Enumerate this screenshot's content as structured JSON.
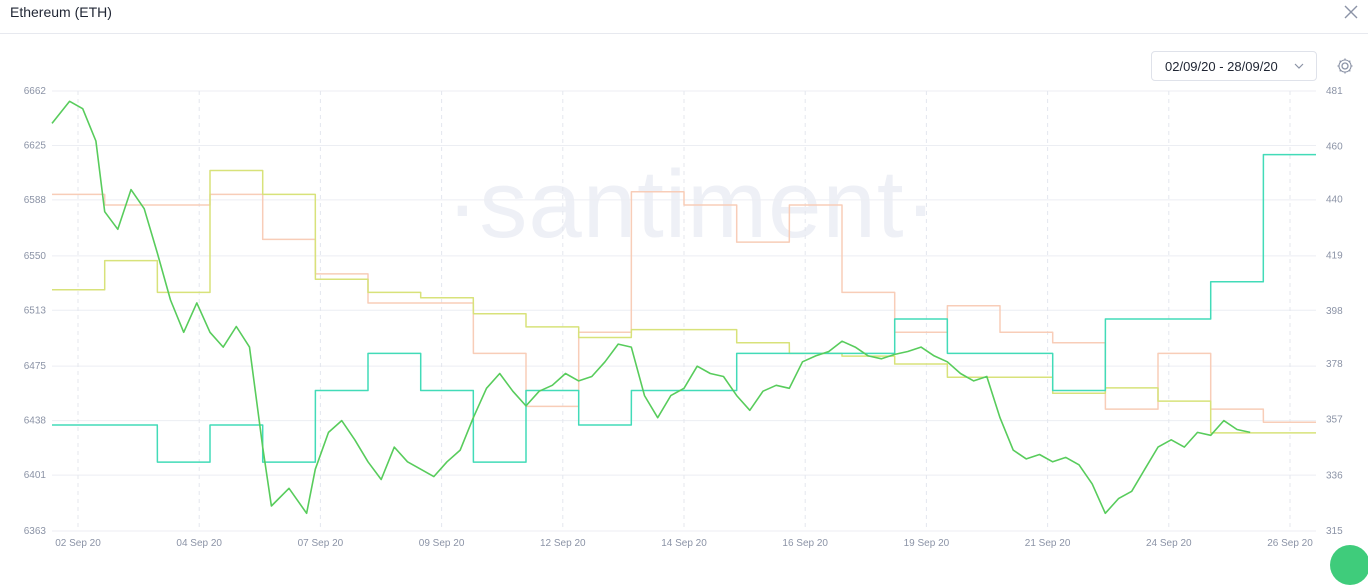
{
  "header": {
    "title": "Ethereum (ETH)",
    "close_icon": "close-icon"
  },
  "controls": {
    "date_range": "02/09/20 - 28/09/20",
    "chevron_icon": "chevron-down-icon",
    "settings_icon": "gear-icon"
  },
  "watermark": "·santiment·",
  "chart_data": {
    "type": "line",
    "title": "",
    "xlabel": "",
    "ylabel": "",
    "grid": true,
    "x_ticks": [
      "02 Sep 20",
      "04 Sep 20",
      "07 Sep 20",
      "09 Sep 20",
      "12 Sep 20",
      "14 Sep 20",
      "16 Sep 20",
      "19 Sep 20",
      "21 Sep 20",
      "24 Sep 20",
      "26 Sep 20"
    ],
    "x_range": [
      "2020-09-02",
      "2020-09-26"
    ],
    "left_axis": {
      "ticks": [
        6662,
        6625,
        6588,
        6550,
        6513,
        6475,
        6438,
        6401,
        6363
      ],
      "ylim": [
        6363,
        6662
      ]
    },
    "right_axis": {
      "ticks": [
        481,
        460,
        440,
        419,
        398,
        378,
        357,
        336,
        315
      ],
      "ylim": [
        315,
        481
      ]
    },
    "colors": {
      "green": "#58cc5c",
      "teal": "#42dbb8",
      "yellow": "#d8e27a",
      "peach": "#f8cdb8"
    },
    "series": [
      {
        "axis": "left",
        "color": "green",
        "shape": "noisy",
        "points": [
          [
            "2020-09-02",
            6640
          ],
          [
            "2020-09-02T08:00",
            6655
          ],
          [
            "2020-09-02T14:00",
            6650
          ],
          [
            "2020-09-02T20:00",
            6628
          ],
          [
            "2020-09-03",
            6580
          ],
          [
            "2020-09-03T06:00",
            6568
          ],
          [
            "2020-09-03T12:00",
            6595
          ],
          [
            "2020-09-03T18:00",
            6582
          ],
          [
            "2020-09-04",
            6552
          ],
          [
            "2020-09-04T06:00",
            6520
          ],
          [
            "2020-09-04T12:00",
            6498
          ],
          [
            "2020-09-04T18:00",
            6518
          ],
          [
            "2020-09-05",
            6498
          ],
          [
            "2020-09-05T06:00",
            6488
          ],
          [
            "2020-09-05T12:00",
            6502
          ],
          [
            "2020-09-05T18:00",
            6488
          ],
          [
            "2020-09-06",
            6420
          ],
          [
            "2020-09-06T04:00",
            6380
          ],
          [
            "2020-09-06T12:00",
            6392
          ],
          [
            "2020-09-06T20:00",
            6375
          ],
          [
            "2020-09-07",
            6405
          ],
          [
            "2020-09-07T06:00",
            6430
          ],
          [
            "2020-09-07T12:00",
            6438
          ],
          [
            "2020-09-07T18:00",
            6425
          ],
          [
            "2020-09-08",
            6410
          ],
          [
            "2020-09-08T06:00",
            6398
          ],
          [
            "2020-09-08T12:00",
            6420
          ],
          [
            "2020-09-08T18:00",
            6410
          ],
          [
            "2020-09-09",
            6405
          ],
          [
            "2020-09-09T06:00",
            6400
          ],
          [
            "2020-09-09T12:00",
            6410
          ],
          [
            "2020-09-09T18:00",
            6418
          ],
          [
            "2020-09-10",
            6440
          ],
          [
            "2020-09-10T06:00",
            6460
          ],
          [
            "2020-09-10T12:00",
            6470
          ],
          [
            "2020-09-10T18:00",
            6458
          ],
          [
            "2020-09-11",
            6448
          ],
          [
            "2020-09-11T06:00",
            6458
          ],
          [
            "2020-09-11T12:00",
            6462
          ],
          [
            "2020-09-11T18:00",
            6470
          ],
          [
            "2020-09-12",
            6465
          ],
          [
            "2020-09-12T06:00",
            6468
          ],
          [
            "2020-09-12T12:00",
            6478
          ],
          [
            "2020-09-12T18:00",
            6490
          ],
          [
            "2020-09-13",
            6488
          ],
          [
            "2020-09-13T06:00",
            6455
          ],
          [
            "2020-09-13T12:00",
            6440
          ],
          [
            "2020-09-13T18:00",
            6455
          ],
          [
            "2020-09-14",
            6460
          ],
          [
            "2020-09-14T06:00",
            6475
          ],
          [
            "2020-09-14T12:00",
            6470
          ],
          [
            "2020-09-14T18:00",
            6468
          ],
          [
            "2020-09-15",
            6455
          ],
          [
            "2020-09-15T06:00",
            6445
          ],
          [
            "2020-09-15T12:00",
            6458
          ],
          [
            "2020-09-15T18:00",
            6462
          ],
          [
            "2020-09-16",
            6460
          ],
          [
            "2020-09-16T06:00",
            6478
          ],
          [
            "2020-09-16T12:00",
            6482
          ],
          [
            "2020-09-16T18:00",
            6485
          ],
          [
            "2020-09-17",
            6492
          ],
          [
            "2020-09-17T06:00",
            6488
          ],
          [
            "2020-09-17T12:00",
            6482
          ],
          [
            "2020-09-17T18:00",
            6480
          ],
          [
            "2020-09-18",
            6483
          ],
          [
            "2020-09-18T06:00",
            6485
          ],
          [
            "2020-09-18T12:00",
            6488
          ],
          [
            "2020-09-18T18:00",
            6482
          ],
          [
            "2020-09-19",
            6478
          ],
          [
            "2020-09-19T06:00",
            6470
          ],
          [
            "2020-09-19T12:00",
            6465
          ],
          [
            "2020-09-19T18:00",
            6468
          ],
          [
            "2020-09-20",
            6440
          ],
          [
            "2020-09-20T06:00",
            6418
          ],
          [
            "2020-09-20T12:00",
            6412
          ],
          [
            "2020-09-20T18:00",
            6415
          ],
          [
            "2020-09-21",
            6410
          ],
          [
            "2020-09-21T06:00",
            6413
          ],
          [
            "2020-09-21T12:00",
            6408
          ],
          [
            "2020-09-21T18:00",
            6395
          ],
          [
            "2020-09-22",
            6375
          ],
          [
            "2020-09-22T06:00",
            6385
          ],
          [
            "2020-09-22T12:00",
            6390
          ],
          [
            "2020-09-22T18:00",
            6405
          ],
          [
            "2020-09-23",
            6420
          ],
          [
            "2020-09-23T06:00",
            6425
          ],
          [
            "2020-09-23T12:00",
            6420
          ],
          [
            "2020-09-23T18:00",
            6430
          ],
          [
            "2020-09-24",
            6428
          ],
          [
            "2020-09-24T06:00",
            6438
          ],
          [
            "2020-09-24T12:00",
            6432
          ],
          [
            "2020-09-24T18:00",
            6430
          ]
        ]
      },
      {
        "axis": "right",
        "color": "teal",
        "shape": "step",
        "points": [
          [
            "2020-09-02",
            355
          ],
          [
            "2020-09-04",
            355
          ],
          [
            "2020-09-04T00:01",
            341
          ],
          [
            "2020-09-05",
            341
          ],
          [
            "2020-09-05T00:01",
            355
          ],
          [
            "2020-09-06",
            355
          ],
          [
            "2020-09-06T00:01",
            341
          ],
          [
            "2020-09-07",
            341
          ],
          [
            "2020-09-07T00:01",
            368
          ],
          [
            "2020-09-08",
            368
          ],
          [
            "2020-09-08T00:01",
            382
          ],
          [
            "2020-09-09",
            382
          ],
          [
            "2020-09-09T00:01",
            368
          ],
          [
            "2020-09-10",
            368
          ],
          [
            "2020-09-10T00:01",
            341
          ],
          [
            "2020-09-11",
            341
          ],
          [
            "2020-09-11T00:01",
            368
          ],
          [
            "2020-09-12",
            368
          ],
          [
            "2020-09-12T00:01",
            355
          ],
          [
            "2020-09-13",
            355
          ],
          [
            "2020-09-13T00:01",
            368
          ],
          [
            "2020-09-15",
            368
          ],
          [
            "2020-09-15T00:01",
            382
          ],
          [
            "2020-09-18",
            382
          ],
          [
            "2020-09-18T00:01",
            395
          ],
          [
            "2020-09-19",
            395
          ],
          [
            "2020-09-19T00:01",
            382
          ],
          [
            "2020-09-21",
            382
          ],
          [
            "2020-09-21T00:01",
            368
          ],
          [
            "2020-09-22",
            368
          ],
          [
            "2020-09-22T00:01",
            395
          ],
          [
            "2020-09-24",
            395
          ],
          [
            "2020-09-24T00:01",
            409
          ],
          [
            "2020-09-25",
            409
          ],
          [
            "2020-09-25T00:01",
            457
          ],
          [
            "2020-09-26",
            457
          ]
        ]
      },
      {
        "axis": "right",
        "color": "yellow",
        "shape": "step",
        "points": [
          [
            "2020-09-02",
            406
          ],
          [
            "2020-09-03",
            406
          ],
          [
            "2020-09-03T00:01",
            417
          ],
          [
            "2020-09-04",
            417
          ],
          [
            "2020-09-04T00:01",
            405
          ],
          [
            "2020-09-05",
            405
          ],
          [
            "2020-09-05T00:01",
            451
          ],
          [
            "2020-09-06",
            451
          ],
          [
            "2020-09-06T00:01",
            442
          ],
          [
            "2020-09-07",
            442
          ],
          [
            "2020-09-07T00:01",
            410
          ],
          [
            "2020-09-08",
            410
          ],
          [
            "2020-09-08T00:01",
            405
          ],
          [
            "2020-09-09",
            405
          ],
          [
            "2020-09-09T00:01",
            403
          ],
          [
            "2020-09-10",
            403
          ],
          [
            "2020-09-10T00:01",
            397
          ],
          [
            "2020-09-11",
            397
          ],
          [
            "2020-09-11T00:01",
            392
          ],
          [
            "2020-09-12",
            392
          ],
          [
            "2020-09-12T00:01",
            388
          ],
          [
            "2020-09-13",
            388
          ],
          [
            "2020-09-13T00:01",
            391
          ],
          [
            "2020-09-15",
            391
          ],
          [
            "2020-09-15T00:01",
            386
          ],
          [
            "2020-09-16",
            386
          ],
          [
            "2020-09-16T00:01",
            382
          ],
          [
            "2020-09-17",
            382
          ],
          [
            "2020-09-17T00:01",
            381
          ],
          [
            "2020-09-18",
            381
          ],
          [
            "2020-09-18T00:01",
            378
          ],
          [
            "2020-09-19",
            378
          ],
          [
            "2020-09-19T00:01",
            373
          ],
          [
            "2020-09-21",
            373
          ],
          [
            "2020-09-21T00:01",
            367
          ],
          [
            "2020-09-22",
            367
          ],
          [
            "2020-09-22T00:01",
            369
          ],
          [
            "2020-09-23",
            369
          ],
          [
            "2020-09-23T00:01",
            364
          ],
          [
            "2020-09-24",
            364
          ],
          [
            "2020-09-24T00:01",
            352
          ],
          [
            "2020-09-26",
            352
          ]
        ]
      },
      {
        "axis": "right",
        "color": "peach",
        "shape": "step",
        "points": [
          [
            "2020-09-02",
            442
          ],
          [
            "2020-09-03",
            442
          ],
          [
            "2020-09-03T00:01",
            438
          ],
          [
            "2020-09-05",
            438
          ],
          [
            "2020-09-05T00:01",
            442
          ],
          [
            "2020-09-06",
            442
          ],
          [
            "2020-09-06T00:01",
            425
          ],
          [
            "2020-09-07",
            425
          ],
          [
            "2020-09-07T00:01",
            412
          ],
          [
            "2020-09-08",
            412
          ],
          [
            "2020-09-08T00:01",
            401
          ],
          [
            "2020-09-10",
            401
          ],
          [
            "2020-09-10T00:01",
            382
          ],
          [
            "2020-09-11",
            382
          ],
          [
            "2020-09-11T00:01",
            362
          ],
          [
            "2020-09-12",
            362
          ],
          [
            "2020-09-12T00:01",
            390
          ],
          [
            "2020-09-13",
            390
          ],
          [
            "2020-09-13T00:01",
            443
          ],
          [
            "2020-09-14",
            443
          ],
          [
            "2020-09-14T00:01",
            438
          ],
          [
            "2020-09-15",
            438
          ],
          [
            "2020-09-15T00:01",
            424
          ],
          [
            "2020-09-16",
            424
          ],
          [
            "2020-09-16T00:01",
            438
          ],
          [
            "2020-09-17",
            438
          ],
          [
            "2020-09-17T00:01",
            405
          ],
          [
            "2020-09-18",
            405
          ],
          [
            "2020-09-18T00:01",
            390
          ],
          [
            "2020-09-19",
            390
          ],
          [
            "2020-09-19T00:01",
            400
          ],
          [
            "2020-09-20",
            400
          ],
          [
            "2020-09-20T00:01",
            390
          ],
          [
            "2020-09-21",
            390
          ],
          [
            "2020-09-21T00:01",
            386
          ],
          [
            "2020-09-22",
            386
          ],
          [
            "2020-09-22T00:01",
            361
          ],
          [
            "2020-09-23",
            361
          ],
          [
            "2020-09-23T00:01",
            382
          ],
          [
            "2020-09-24",
            382
          ],
          [
            "2020-09-24T00:01",
            361
          ],
          [
            "2020-09-25",
            361
          ],
          [
            "2020-09-25T00:01",
            356
          ],
          [
            "2020-09-26",
            356
          ]
        ]
      }
    ]
  }
}
